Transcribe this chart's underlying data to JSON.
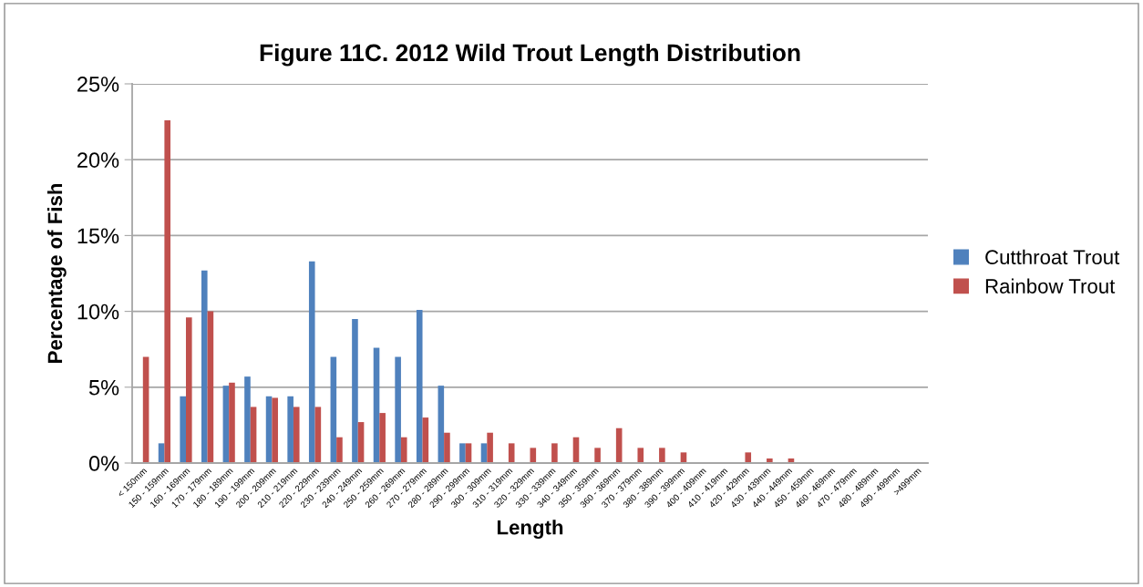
{
  "chart_data": {
    "type": "bar",
    "title": "Figure 11C. 2012 Wild Trout Length Distribution",
    "xlabel": "Length",
    "ylabel": "Percentage of Fish",
    "categories": [
      "< 150mm",
      "150 - 159mm",
      "160 - 169mm",
      "170 - 179mm",
      "180 - 189mm",
      "190 - 199mm",
      "200 - 209mm",
      "210 - 219mm",
      "220 - 229mm",
      "230 - 239mm",
      "240 - 249mm",
      "250 - 259mm",
      "260 - 269mm",
      "270 - 279mm",
      "280 - 289mm",
      "290 - 299mm",
      "300 - 309mm",
      "310 - 319mm",
      "320 - 329mm",
      "330 - 339mm",
      "340 - 349mm",
      "350 - 359mm",
      "360 - 369mm",
      "370 - 379mm",
      "380 - 389mm",
      "390 - 399mm",
      "400 - 409mm",
      "410 - 419mm",
      "420 - 429mm",
      "430 - 439mm",
      "440 - 449mm",
      "450 - 459mm",
      "460 - 469mm",
      "470 - 479mm",
      "480 - 489mm",
      "490 - 499mm",
      ">499mm"
    ],
    "series": [
      {
        "name": "Cutthroat Trout",
        "color": "#4f81bd",
        "values": [
          0,
          1.3,
          4.4,
          12.7,
          5.1,
          5.7,
          4.4,
          4.4,
          13.3,
          7.0,
          9.5,
          7.6,
          7.0,
          10.1,
          5.1,
          1.3,
          1.3,
          0,
          0,
          0,
          0,
          0,
          0,
          0,
          0,
          0,
          0,
          0,
          0,
          0,
          0,
          0,
          0,
          0,
          0,
          0,
          0
        ]
      },
      {
        "name": "Rainbow Trout",
        "color": "#c0504d",
        "values": [
          7.0,
          22.6,
          9.6,
          10.0,
          5.3,
          3.7,
          4.3,
          3.7,
          3.7,
          1.7,
          2.7,
          3.3,
          1.7,
          3.0,
          2.0,
          1.3,
          2.0,
          1.3,
          1.0,
          1.3,
          1.7,
          1.0,
          2.3,
          1.0,
          1.0,
          0.7,
          0,
          0,
          0.7,
          0.3,
          0.3,
          0,
          0,
          0,
          0,
          0,
          0
        ]
      }
    ],
    "ylim": [
      0,
      25
    ],
    "yticks": [
      {
        "value": 0,
        "label": "0%"
      },
      {
        "value": 5,
        "label": "5%"
      },
      {
        "value": 10,
        "label": "10%"
      },
      {
        "value": 15,
        "label": "15%"
      },
      {
        "value": 20,
        "label": "20%"
      },
      {
        "value": 25,
        "label": "25%"
      }
    ],
    "grid": "y",
    "legend": "right"
  }
}
